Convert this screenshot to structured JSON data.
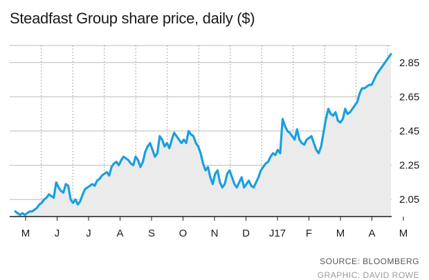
{
  "title": "Steadfast Group share price, daily ($)",
  "source": "SOURCE: BLOOMBERG",
  "credit": "GRAPHIC: DAVID ROWE",
  "colors": {
    "line": "#1a9fdf",
    "area": "#ebebeb",
    "grid": "#b9b9b9"
  },
  "chart_data": {
    "type": "area",
    "title": "Steadfast Group share price, daily ($)",
    "xlabel": "",
    "ylabel": "",
    "ylim": [
      1.95,
      2.95
    ],
    "y_ticks": [
      2.05,
      2.25,
      2.45,
      2.65,
      2.85
    ],
    "x_ticks": [
      "M",
      "J",
      "J",
      "A",
      "S",
      "O",
      "N",
      "D",
      "J17",
      "F",
      "M",
      "A",
      "M"
    ],
    "series": [
      {
        "values": [
          1.98,
          1.97,
          1.96,
          1.97,
          1.96,
          1.97,
          1.98,
          1.98,
          1.99,
          2.0,
          2.02,
          2.03,
          2.05,
          2.06,
          2.08,
          2.07,
          2.06,
          2.15,
          2.12,
          2.1,
          2.09,
          2.14,
          2.13,
          2.05,
          2.03,
          2.05,
          2.02,
          2.04,
          2.08,
          2.11,
          2.12,
          2.13,
          2.14,
          2.13,
          2.16,
          2.17,
          2.19,
          2.2,
          2.21,
          2.19,
          2.24,
          2.26,
          2.27,
          2.25,
          2.28,
          2.3,
          2.29,
          2.28,
          2.26,
          2.25,
          2.3,
          2.28,
          2.24,
          2.27,
          2.33,
          2.36,
          2.38,
          2.34,
          2.3,
          2.32,
          2.42,
          2.4,
          2.36,
          2.38,
          2.35,
          2.4,
          2.44,
          2.42,
          2.4,
          2.38,
          2.4,
          2.38,
          2.45,
          2.43,
          2.42,
          2.38,
          2.36,
          2.32,
          2.26,
          2.22,
          2.24,
          2.18,
          2.14,
          2.2,
          2.22,
          2.15,
          2.12,
          2.14,
          2.2,
          2.22,
          2.18,
          2.14,
          2.12,
          2.15,
          2.18,
          2.12,
          2.14,
          2.16,
          2.13,
          2.12,
          2.15,
          2.18,
          2.22,
          2.24,
          2.26,
          2.27,
          2.3,
          2.32,
          2.31,
          2.34,
          2.32,
          2.52,
          2.48,
          2.45,
          2.44,
          2.42,
          2.4,
          2.46,
          2.4,
          2.38,
          2.37,
          2.4,
          2.41,
          2.42,
          2.38,
          2.34,
          2.32,
          2.36,
          2.44,
          2.52,
          2.58,
          2.55,
          2.54,
          2.56,
          2.51,
          2.5,
          2.52,
          2.58,
          2.55,
          2.56,
          2.58,
          2.6,
          2.62,
          2.67,
          2.7,
          2.7,
          2.71,
          2.72,
          2.72,
          2.75,
          2.78,
          2.8,
          2.82,
          2.84,
          2.86,
          2.88,
          2.9
        ]
      }
    ],
    "grid": true
  }
}
